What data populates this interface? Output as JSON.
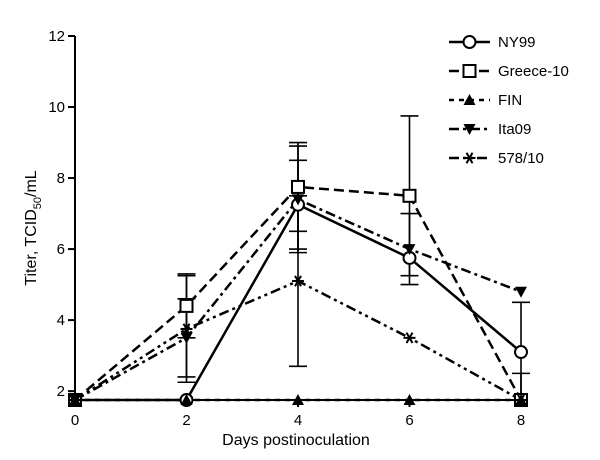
{
  "chart_data": {
    "type": "line",
    "title": "",
    "xlabel": "Days postinoculation",
    "ylabel": {
      "prefix": "Titer, TCID",
      "subscript": "50",
      "suffix": "/mL"
    },
    "xlim": [
      0,
      8
    ],
    "ylim": [
      1.75,
      12
    ],
    "x_ticks": [
      0,
      2,
      4,
      6,
      8
    ],
    "y_ticks": [
      2,
      4,
      6,
      8,
      10,
      12
    ],
    "grid": false,
    "legend_position": "top-right",
    "x": [
      0,
      2,
      4,
      6,
      8
    ],
    "series": [
      {
        "name": "NY99",
        "marker": "open-circle",
        "dash": "solid",
        "values": [
          1.75,
          1.75,
          7.25,
          5.75,
          3.1
        ],
        "errors": [
          0,
          0,
          1.25,
          0,
          1.4
        ]
      },
      {
        "name": "Greece-10",
        "marker": "open-square",
        "dash": "dashed",
        "values": [
          1.75,
          4.4,
          7.75,
          7.5,
          1.75
        ],
        "errors": [
          0,
          0.9,
          1.25,
          2.25,
          0
        ]
      },
      {
        "name": "FIN",
        "marker": "filled-triangle-up",
        "dash": "dotted",
        "values": [
          1.75,
          1.75,
          1.75,
          1.75,
          1.75
        ],
        "errors": [
          0,
          0,
          0,
          0,
          0
        ]
      },
      {
        "name": "Ita09",
        "marker": "filled-triangle-down",
        "dash": "dashdot",
        "values": [
          1.75,
          3.5,
          7.4,
          6.0,
          4.8
        ],
        "errors": [
          0,
          1.1,
          1.5,
          1.0,
          0
        ]
      },
      {
        "name": "578/10",
        "marker": "asterisk",
        "dash": "dashdotdot",
        "values": [
          1.75,
          3.75,
          5.1,
          3.5,
          1.75
        ],
        "errors": [
          0,
          1.5,
          2.4,
          0,
          0.75
        ]
      }
    ]
  }
}
